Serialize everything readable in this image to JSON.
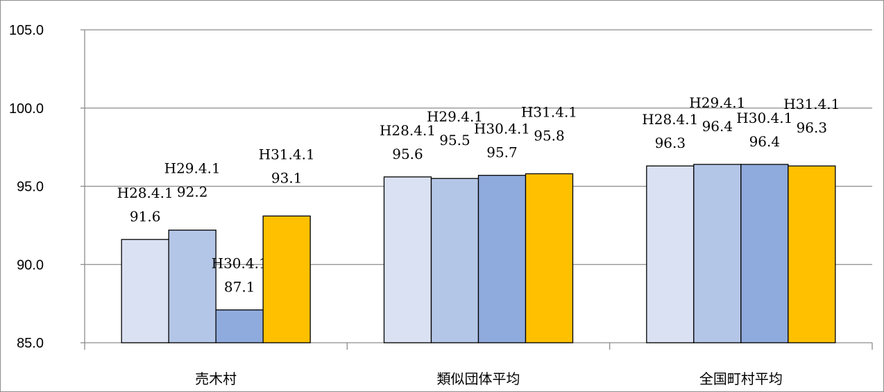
{
  "chart_data": {
    "type": "bar",
    "categories": [
      "売木村",
      "類似団体平均",
      "全国町村平均"
    ],
    "series": [
      {
        "name": "H28.4.1",
        "values": [
          91.6,
          95.6,
          96.3
        ],
        "color": "#d9e1f2"
      },
      {
        "name": "H29.4.1",
        "values": [
          92.2,
          95.5,
          96.4
        ],
        "color": "#b4c6e7"
      },
      {
        "name": "H30.4.1",
        "values": [
          87.1,
          95.7,
          96.4
        ],
        "color": "#8faadc"
      },
      {
        "name": "H31.4.1",
        "values": [
          93.1,
          95.8,
          96.3
        ],
        "color": "#ffc000"
      }
    ],
    "ylim": [
      85.0,
      105.0
    ],
    "yticks": [
      "85.0",
      "90.0",
      "95.0",
      "100.0",
      "105.0"
    ],
    "grid": true,
    "title": "",
    "xlabel": "",
    "ylabel": ""
  }
}
